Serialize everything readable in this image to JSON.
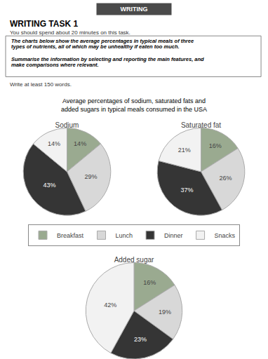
{
  "title": "Average percentages of sodium, saturated fats and\nadded sugars in typical meals consumed in the USA",
  "annotations": [
    "WRITING",
    "WRITING TASK 1",
    "You should spend about 20 minutes on this task.",
    "The charts below show the average percentages in typical meals of three",
    "types of nutrients, all of which may be unhealthy if eaten too much.",
    "Summarise the information by selecting and reporting the main features, and",
    "make comparisons where relevant.",
    "Write at least 150 words."
  ],
  "legend": "center",
  "chart_data": [
    {
      "type": "pie",
      "title": "Sodium",
      "categories": [
        "Breakfast",
        "Lunch",
        "Dinner",
        "Snacks"
      ],
      "values": [
        14,
        29,
        43,
        14
      ],
      "value_labels": [
        "14%",
        "29%",
        "43%",
        "14%"
      ],
      "colors": [
        "#9aaa90",
        "#d8d8d8",
        "#353535",
        "#f2f2f2"
      ],
      "data_labels": true
    },
    {
      "type": "pie",
      "title": "Saturated fat",
      "categories": [
        "Breakfast",
        "Lunch",
        "Dinner",
        "Snacks"
      ],
      "values": [
        16,
        26,
        37,
        21
      ],
      "value_labels": [
        "16%",
        "26%",
        "37%",
        "21%"
      ],
      "colors": [
        "#9aaa90",
        "#d8d8d8",
        "#353535",
        "#f2f2f2"
      ],
      "data_labels": true
    },
    {
      "type": "pie",
      "title": "Added sugar",
      "categories": [
        "Breakfast",
        "Lunch",
        "Dinner",
        "Snacks"
      ],
      "values": [
        16,
        19,
        23,
        42
      ],
      "value_labels": [
        "16%",
        "19%",
        "23%",
        "42%"
      ],
      "colors": [
        "#9aaa90",
        "#d8d8d8",
        "#353535",
        "#f2f2f2"
      ],
      "data_labels": true
    }
  ]
}
